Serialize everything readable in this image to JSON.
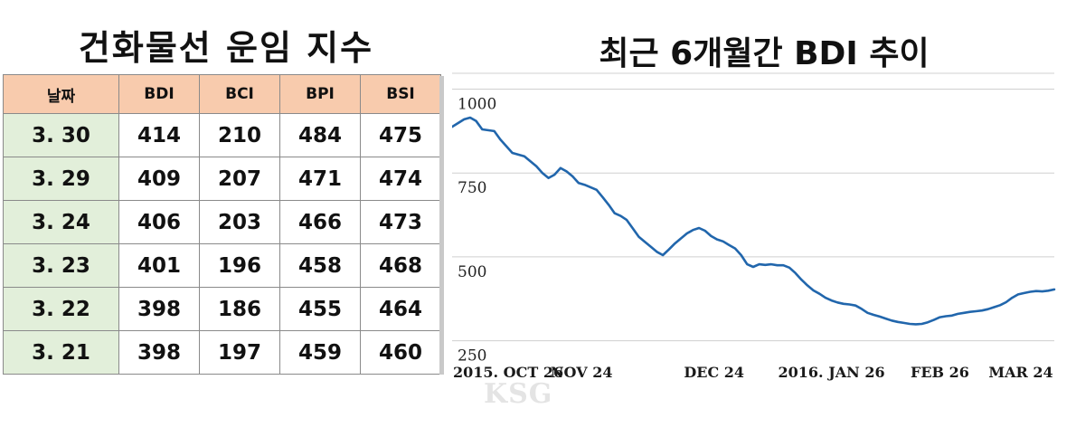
{
  "left_title": "건화물선 운임 지수",
  "right_title": "최근 6개월간 BDI 추이",
  "table": {
    "headers": [
      "날짜",
      "BDI",
      "BCI",
      "BPI",
      "BSI"
    ],
    "rows": [
      [
        "3. 30",
        "414",
        "210",
        "484",
        "475"
      ],
      [
        "3. 29",
        "409",
        "207",
        "471",
        "474"
      ],
      [
        "3. 24",
        "406",
        "203",
        "466",
        "473"
      ],
      [
        "3. 23",
        "401",
        "196",
        "458",
        "468"
      ],
      [
        "3. 22",
        "398",
        "186",
        "455",
        "464"
      ],
      [
        "3. 21",
        "398",
        "197",
        "459",
        "460"
      ]
    ]
  },
  "watermark": "KSG",
  "chart_data": {
    "type": "line",
    "title": "최근 6개월간 BDI 추이",
    "xlabel": "",
    "ylabel": "",
    "ylim": [
      230,
      1050
    ],
    "y_ticks": [
      1000,
      750,
      500,
      250
    ],
    "x_tick_labels": [
      "2015. OCT 26",
      "NOV 24",
      "DEC 24",
      "2016. JAN 26",
      "FEB 26",
      "MAR 24"
    ],
    "x_range": [
      0,
      100
    ],
    "grid": true,
    "legend": "none",
    "line_color": "#2166ac",
    "series": [
      {
        "values": [
          [
            0,
            888
          ],
          [
            2,
            910
          ],
          [
            3,
            915
          ],
          [
            4,
            905
          ],
          [
            5,
            880
          ],
          [
            7,
            875
          ],
          [
            8,
            850
          ],
          [
            10,
            810
          ],
          [
            12,
            800
          ],
          [
            14,
            770
          ],
          [
            15,
            750
          ],
          [
            16,
            735
          ],
          [
            17,
            745
          ],
          [
            18,
            765
          ],
          [
            19,
            755
          ],
          [
            20,
            740
          ],
          [
            21,
            720
          ],
          [
            22,
            715
          ],
          [
            24,
            700
          ],
          [
            25,
            678
          ],
          [
            26,
            655
          ],
          [
            27,
            630
          ],
          [
            28,
            622
          ],
          [
            29,
            610
          ],
          [
            30,
            585
          ],
          [
            31,
            560
          ],
          [
            32,
            545
          ],
          [
            33,
            530
          ],
          [
            34,
            515
          ],
          [
            35,
            505
          ],
          [
            36,
            522
          ],
          [
            37,
            540
          ],
          [
            38,
            555
          ],
          [
            39,
            570
          ],
          [
            40,
            580
          ],
          [
            41,
            586
          ],
          [
            42,
            578
          ],
          [
            43,
            562
          ],
          [
            44,
            552
          ],
          [
            45,
            546
          ],
          [
            46,
            535
          ],
          [
            47,
            525
          ],
          [
            48,
            505
          ],
          [
            49,
            478
          ],
          [
            50,
            470
          ],
          [
            51,
            478
          ],
          [
            52,
            476
          ],
          [
            53,
            478
          ],
          [
            54,
            475
          ],
          [
            55,
            475
          ],
          [
            56,
            468
          ],
          [
            57,
            452
          ],
          [
            58,
            432
          ],
          [
            59,
            415
          ],
          [
            60,
            400
          ],
          [
            61,
            390
          ],
          [
            62,
            378
          ],
          [
            63,
            370
          ],
          [
            64,
            364
          ],
          [
            65,
            360
          ],
          [
            66,
            358
          ],
          [
            67,
            355
          ],
          [
            68,
            345
          ],
          [
            69,
            333
          ],
          [
            70,
            327
          ],
          [
            71,
            322
          ],
          [
            72,
            316
          ],
          [
            73,
            310
          ],
          [
            74,
            306
          ],
          [
            75,
            303
          ],
          [
            76,
            300
          ],
          [
            77,
            299
          ],
          [
            78,
            300
          ],
          [
            79,
            305
          ],
          [
            80,
            312
          ],
          [
            81,
            320
          ],
          [
            82,
            323
          ],
          [
            83,
            325
          ],
          [
            84,
            330
          ],
          [
            85,
            333
          ],
          [
            86,
            336
          ],
          [
            87,
            338
          ],
          [
            88,
            340
          ],
          [
            89,
            344
          ],
          [
            90,
            350
          ],
          [
            91,
            356
          ],
          [
            92,
            365
          ],
          [
            93,
            378
          ],
          [
            94,
            388
          ],
          [
            95,
            392
          ],
          [
            96,
            396
          ],
          [
            97,
            398
          ],
          [
            98,
            397
          ],
          [
            99,
            399
          ],
          [
            100,
            403
          ]
        ]
      }
    ]
  }
}
